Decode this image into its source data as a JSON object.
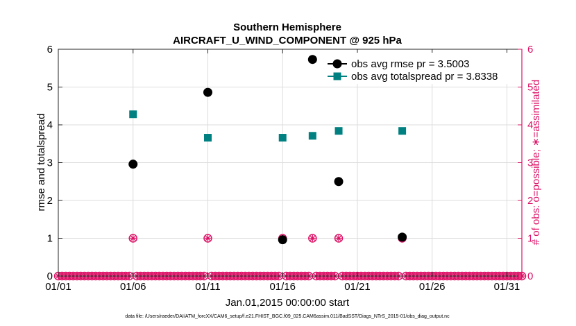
{
  "chart_data": {
    "type": "scatter",
    "title": "Southern Hemisphere",
    "subtitle": "AIRCRAFT_U_WIND_COMPONENT @ 925 hPa",
    "xlabel": "Jan.01,2015 00:00:00 start",
    "ylabel": "rmse and totalspread",
    "y2label": "# of obs: o=possible; ∗=assimilated",
    "footer": "data file: /Users/raeder/DAI/ATM_forcXX/CAM6_setup/f.e21.FHIST_BGC.f09_025.CAM6assim.011/BadSST/Diags_NTrS_2015-01/obs_diag_output.nc",
    "xlim": [
      1,
      32
    ],
    "ylim": [
      0,
      6
    ],
    "y2lim": [
      0,
      6
    ],
    "x_ticks": [
      1,
      6,
      11,
      16,
      21,
      26,
      31
    ],
    "x_tick_labels": [
      "01/01",
      "01/06",
      "01/11",
      "01/16",
      "01/21",
      "01/26",
      "01/31"
    ],
    "y_ticks": [
      0,
      1,
      2,
      3,
      4,
      5,
      6
    ],
    "y_tick_labels": [
      "0",
      "1",
      "2",
      "3",
      "4",
      "5",
      "6"
    ],
    "y2_ticks": [
      0,
      1,
      2,
      3,
      4,
      5,
      6
    ],
    "y2_tick_labels": [
      "0",
      "1",
      "2",
      "3",
      "4",
      "5",
      "6"
    ],
    "grid": true,
    "legend_position": "top-right",
    "colors": {
      "rmse": "#000000",
      "spread": "#008080",
      "obs": "#dd1166"
    },
    "series": [
      {
        "name": "obs avg rmse pr = 3.5003",
        "axis": "left",
        "marker": "circle",
        "points": [
          {
            "x": 6.0,
            "y": 2.96
          },
          {
            "x": 11.0,
            "y": 4.86
          },
          {
            "x": 16.0,
            "y": 0.96
          },
          {
            "x": 18.0,
            "y": 5.73
          },
          {
            "x": 19.75,
            "y": 2.5
          },
          {
            "x": 24.0,
            "y": 1.03
          }
        ]
      },
      {
        "name": "obs avg totalspread pr = 3.8338",
        "axis": "left",
        "marker": "square-line",
        "points": [
          {
            "x": 6.0,
            "y": 4.28
          },
          {
            "x": 11.0,
            "y": 3.66
          },
          {
            "x": 16.0,
            "y": 3.66
          },
          {
            "x": 18.0,
            "y": 3.71
          },
          {
            "x": 19.75,
            "y": 3.84
          },
          {
            "x": 24.0,
            "y": 3.84
          }
        ]
      }
    ],
    "obs_counts": {
      "axis": "right",
      "x_start": 1.0,
      "x_end": 32.0,
      "step": 0.25,
      "nonzero": [
        {
          "x": 6.0,
          "possible": 1,
          "assimilated": 1
        },
        {
          "x": 11.0,
          "possible": 1,
          "assimilated": 1
        },
        {
          "x": 16.0,
          "possible": 1,
          "assimilated": 1
        },
        {
          "x": 18.0,
          "possible": 1,
          "assimilated": 1
        },
        {
          "x": 19.75,
          "possible": 1,
          "assimilated": 1
        },
        {
          "x": 24.0,
          "possible": 1,
          "assimilated": 1
        }
      ]
    }
  }
}
